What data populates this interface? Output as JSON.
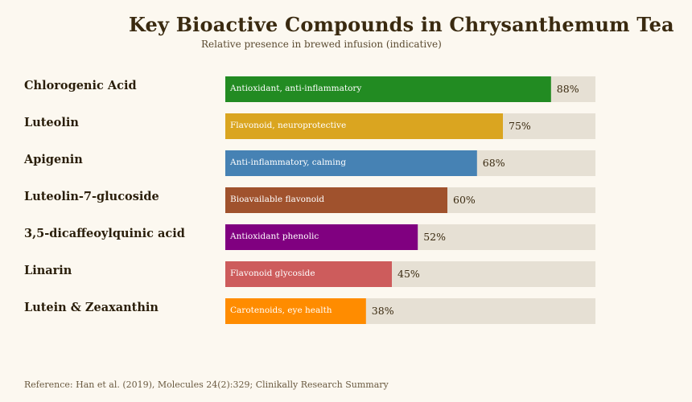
{
  "header": {
    "title": "Key Bioactive Compounds in Chrysanthemum Tea",
    "subtitle": "Relative presence in brewed infusion (indicative)"
  },
  "footer": {
    "reference": "Reference: Han et al. (2019), Molecules 24(2):329; Clinikally Research Summary"
  },
  "chart_data": {
    "type": "bar",
    "orientation": "horizontal",
    "title": "Key Bioactive Compounds in Chrysanthemum Tea",
    "subtitle": "Relative presence in brewed infusion (indicative)",
    "xlim": [
      0,
      100
    ],
    "value_unit": "%",
    "grid": false,
    "track_color": "#e6e0d4",
    "categories": [
      "Chlorogenic Acid",
      "Luteolin",
      "Apigenin",
      "Luteolin-7-glucoside",
      "3,5-dicaffeoylquinic acid",
      "Linarin",
      "Lutein & Zeaxanthin"
    ],
    "values": [
      88,
      75,
      68,
      60,
      52,
      45,
      38
    ],
    "value_labels": [
      "88%",
      "75%",
      "68%",
      "60%",
      "52%",
      "45%",
      "38%"
    ],
    "bar_annotations": [
      "Antioxidant, anti-inflammatory",
      "Flavonoid, neuroprotective",
      "Anti-inflammatory, calming",
      "Bioavailable flavonoid",
      "Antioxidant phenolic",
      "Flavonoid glycoside",
      "Carotenoids, eye health"
    ],
    "colors": [
      "#228b22",
      "#daa520",
      "#4682b4",
      "#a0522d",
      "#800080",
      "#cd5c5c",
      "#ff8c00"
    ]
  }
}
